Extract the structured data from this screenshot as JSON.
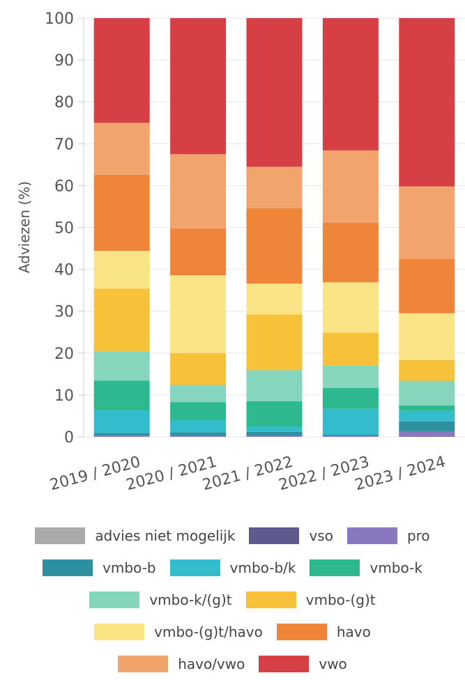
{
  "chart_data": {
    "type": "bar",
    "stacked": true,
    "ylabel": "Adviezen (%)",
    "ylim": [
      0,
      100
    ],
    "yticks": [
      0,
      10,
      20,
      30,
      40,
      50,
      60,
      70,
      80,
      90,
      100
    ],
    "grid": true,
    "legend_position": "bottom",
    "categories": [
      "2019 / 2020",
      "2020 / 2021",
      "2021 / 2022",
      "2022 / 2023",
      "2023 / 2024"
    ],
    "series": [
      {
        "name": "advies niet mogelijk",
        "color": "#aaaaaa",
        "values": [
          0,
          0,
          0,
          0,
          0
        ]
      },
      {
        "name": "vso",
        "color": "#5e5a8e",
        "values": [
          0,
          0,
          0,
          0,
          0
        ]
      },
      {
        "name": "pro",
        "color": "#8a78bf",
        "values": [
          0.3,
          0.2,
          0.2,
          0.2,
          1.2
        ]
      },
      {
        "name": "vmbo-b",
        "color": "#2e8f9f",
        "values": [
          0.6,
          0.8,
          1.0,
          0.3,
          2.5
        ]
      },
      {
        "name": "vmbo-b/k",
        "color": "#33bccb",
        "values": [
          5.5,
          3.0,
          1.2,
          6.2,
          2.5
        ]
      },
      {
        "name": "vmbo-k",
        "color": "#2db88f",
        "values": [
          7.0,
          4.3,
          6.1,
          5.0,
          1.3
        ]
      },
      {
        "name": "vmbo-k/(g)t",
        "color": "#86d6be",
        "values": [
          7.1,
          4.1,
          7.4,
          5.3,
          5.9
        ]
      },
      {
        "name": "vmbo-(g)t",
        "color": "#f8c13a",
        "values": [
          14.9,
          7.6,
          13.3,
          7.9,
          4.9
        ]
      },
      {
        "name": "vmbo-(g)t/havo",
        "color": "#fbe485",
        "values": [
          9.0,
          18.6,
          7.4,
          12.0,
          11.2
        ]
      },
      {
        "name": "havo",
        "color": "#ef8539",
        "values": [
          18.2,
          11.2,
          18.0,
          14.3,
          13.0
        ]
      },
      {
        "name": "havo/vwo",
        "color": "#f2a46d",
        "values": [
          12.4,
          17.7,
          9.9,
          17.2,
          17.3
        ]
      },
      {
        "name": "vwo",
        "color": "#d64045",
        "values": [
          25.0,
          32.5,
          35.5,
          31.6,
          40.2
        ]
      }
    ],
    "legend_rows": [
      [
        "advies niet mogelijk",
        "vso",
        "pro"
      ],
      [
        "vmbo-b",
        "vmbo-b/k",
        "vmbo-k"
      ],
      [
        "vmbo-k/(g)t",
        "vmbo-(g)t"
      ],
      [
        "vmbo-(g)t/havo",
        "havo"
      ],
      [
        "havo/vwo",
        "vwo"
      ]
    ]
  }
}
